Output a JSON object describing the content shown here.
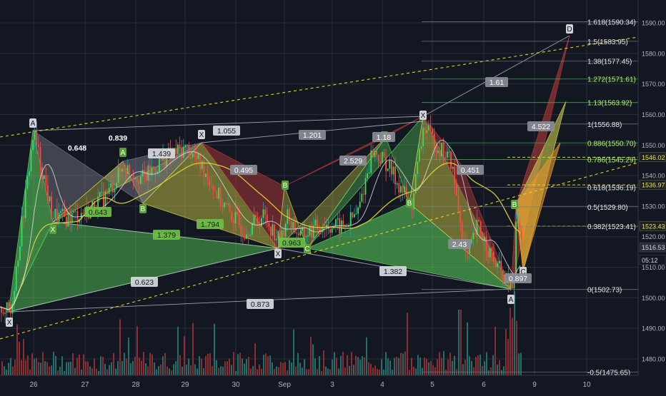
{
  "chart_data": {
    "type": "candlestick",
    "colors": {
      "background": "#131722",
      "grid": "#2a2e39",
      "axis_text": "#b2b5be",
      "up": "#26a69a",
      "down": "#ef5350",
      "volume_up": "#1f6f6a",
      "volume_down": "#8a2e32",
      "fib_line": "#4caf50",
      "fib_line_text": "#ffffff",
      "fib_green_text": "#b6f26a",
      "ma_slow": "#d4c93a",
      "ma_fast": "#e0e0e0",
      "trend_dashed": "#e6d21a",
      "pattern_green": "#5cd65c",
      "pattern_yellow": "#d8d84a",
      "pattern_red": "#b33a3a",
      "pattern_gray": "#7a7a86",
      "pattern_orange": "#e89a2e",
      "label_bg": "#cfd2d8",
      "label_text": "#131722"
    },
    "y_axis": {
      "min": 1473,
      "max": 1594,
      "ticks": [
        "1590.00",
        "1580.00",
        "1570.00",
        "1560.00",
        "1550.00",
        "1540.00",
        "1530.00",
        "1520.00",
        "1510.00",
        "1500.00",
        "1490.00",
        "1480.00"
      ]
    },
    "x_axis": {
      "labels": [
        "26",
        "27",
        "28",
        "29",
        "30",
        "Sep",
        "3",
        "4",
        "5",
        "6",
        "9",
        "10"
      ]
    },
    "price_tags": [
      {
        "value": 1546.02,
        "label": "1546.02",
        "style": "yellow"
      },
      {
        "value": 1536.97,
        "label": "1536.97",
        "style": "yellow"
      },
      {
        "value": 1523.43,
        "label": "1523.43",
        "style": "yellow"
      },
      {
        "value": 1516.53,
        "label": "1516.53",
        "style": "gray"
      },
      {
        "value": 1512.4,
        "label": "05:12",
        "style": "dark"
      }
    ],
    "fib_levels": [
      {
        "value": 1590.34,
        "label": "1.618(1590.34)",
        "green": false
      },
      {
        "value": 1583.95,
        "label": "1.5(1583.95)",
        "green": false
      },
      {
        "value": 1577.45,
        "label": "1.38(1577.45)",
        "green": false
      },
      {
        "value": 1571.61,
        "label": "1.272(1571.61)",
        "green": true
      },
      {
        "value": 1563.92,
        "label": "1.13(1563.92)",
        "green": true
      },
      {
        "value": 1556.88,
        "label": "1(1556.88)",
        "green": false
      },
      {
        "value": 1550.7,
        "label": "0.886(1550.70)",
        "green": true
      },
      {
        "value": 1545.29,
        "label": "0.786(1545.29)",
        "green": true
      },
      {
        "value": 1536.19,
        "label": "0.618(1536.19)",
        "green": false
      },
      {
        "value": 1529.8,
        "label": "0.5(1529.80)",
        "green": false
      },
      {
        "value": 1523.41,
        "label": "0.382(1523.41)",
        "green": false
      },
      {
        "value": 1502.73,
        "label": "0(1502.73)",
        "green": false
      },
      {
        "value": 1475.65,
        "label": "-0.5(1475.65)",
        "green": false
      }
    ],
    "pattern_points": [
      {
        "label": "X",
        "x": "Aug 25",
        "y": 1494
      },
      {
        "label": "A",
        "x": "Aug 26",
        "y": 1555
      },
      {
        "label": "X",
        "x": "Aug 26",
        "y": 1524
      },
      {
        "label": "A",
        "x": "Aug 27",
        "y": 1547
      },
      {
        "label": "B",
        "x": "Aug 28",
        "y": 1532
      },
      {
        "label": "X",
        "x": "Aug 29",
        "y": 1550
      },
      {
        "label": "B",
        "x": "Aug 31",
        "y": 1535
      },
      {
        "label": "X",
        "x": "Aug 31",
        "y": 1517
      },
      {
        "label": "C",
        "x": "Sep 1",
        "y": 1519
      },
      {
        "label": "A",
        "x": "Sep 4",
        "y": 1552
      },
      {
        "label": "B",
        "x": "Sep 4",
        "y": 1533
      },
      {
        "label": "X",
        "x": "Sep 5",
        "y": 1557
      },
      {
        "label": "A",
        "x": "Sep 6",
        "y": 1502
      },
      {
        "label": "B",
        "x": "Sep 6",
        "y": 1533
      },
      {
        "label": "C",
        "x": "Sep 6",
        "y": 1510
      },
      {
        "label": "D",
        "x": "Sep 9",
        "y": 1588
      }
    ],
    "ratio_labels": [
      {
        "text": "0.648",
        "style": "dark"
      },
      {
        "text": "0.839",
        "style": "dark"
      },
      {
        "text": "1.439",
        "style": "light"
      },
      {
        "text": "1.055",
        "style": "light"
      },
      {
        "text": "1.201",
        "style": "gray"
      },
      {
        "text": "0.495",
        "style": "gray"
      },
      {
        "text": "1.18",
        "style": "gray"
      },
      {
        "text": "2.529",
        "style": "gray"
      },
      {
        "text": "1.61",
        "style": "gray"
      },
      {
        "text": "4.522",
        "style": "gray"
      },
      {
        "text": "0.451",
        "style": "gray"
      },
      {
        "text": "0.643",
        "style": "green"
      },
      {
        "text": "1.794",
        "style": "green"
      },
      {
        "text": "1.379",
        "style": "green"
      },
      {
        "text": "0.963",
        "style": "green"
      },
      {
        "text": "2.43",
        "style": "gray"
      },
      {
        "text": "1.382",
        "style": "light"
      },
      {
        "text": "0.897",
        "style": "gray"
      },
      {
        "text": "0.623",
        "style": "light"
      },
      {
        "text": "0.873",
        "style": "light"
      }
    ],
    "legend": "none",
    "grid": true
  }
}
